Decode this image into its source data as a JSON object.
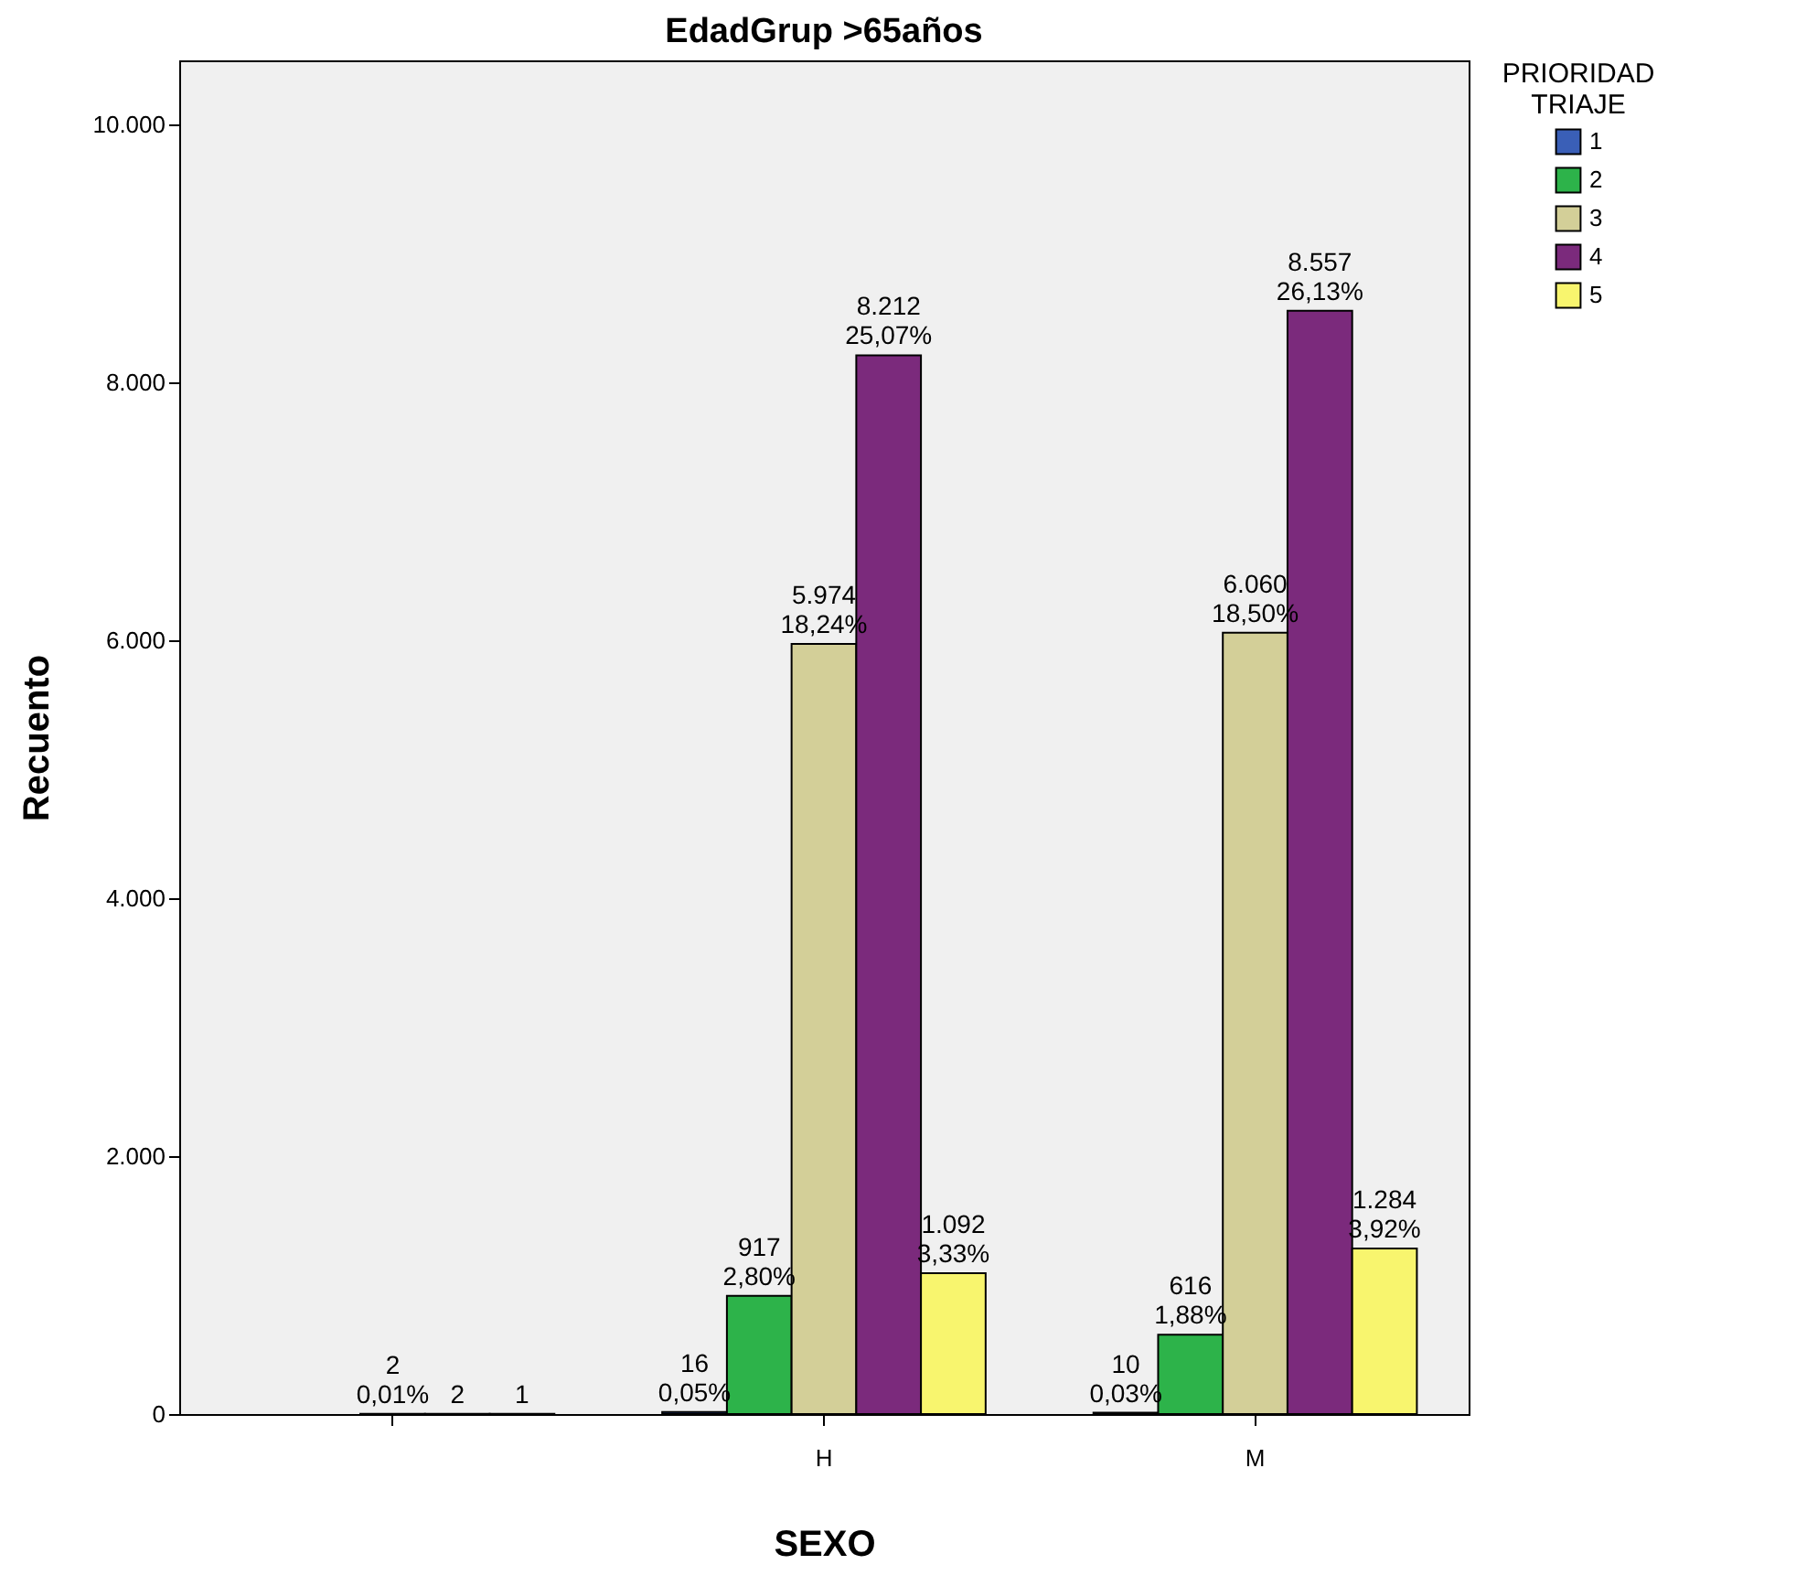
{
  "chart_data": {
    "type": "bar",
    "title": "EdadGrup >65años",
    "xlabel": "SEXO",
    "ylabel": "Recuento",
    "legend_title": "PRIORIDAD TRIAJE",
    "categories": [
      null,
      "H",
      "M"
    ],
    "series": [
      {
        "name": "1",
        "color": "#3a5fb7",
        "values": [
          null,
          16,
          10
        ],
        "value_labels": [
          null,
          "16\n0,05%",
          "10\n0,03%"
        ]
      },
      {
        "name": "2",
        "color": "#2db34a",
        "values": [
          null,
          917,
          616
        ],
        "value_labels": [
          null,
          "917\n2,80%",
          "616\n1,88%"
        ]
      },
      {
        "name": "3",
        "color": "#d3cf98",
        "values": [
          2,
          5974,
          6060
        ],
        "value_labels": [
          "2\n0,01%",
          "5.974\n18,24%",
          "6.060\n18,50%"
        ]
      },
      {
        "name": "4",
        "color": "#7b2a7c",
        "values": [
          2,
          8212,
          8557
        ],
        "value_labels": [
          "2",
          "8.212\n25,07%",
          "8.557\n26,13%"
        ]
      },
      {
        "name": "5",
        "color": "#f8f56e",
        "values": [
          1,
          1092,
          1284
        ],
        "value_labels": [
          "1",
          "1.092\n3,33%",
          "1.284\n3,92%"
        ]
      }
    ],
    "ylim": [
      0,
      10500
    ],
    "yticks": [
      {
        "value": 0,
        "label": "0"
      },
      {
        "value": 2000,
        "label": "2.000"
      },
      {
        "value": 4000,
        "label": "4.000"
      },
      {
        "value": 6000,
        "label": "6.000"
      },
      {
        "value": 8000,
        "label": "8.000"
      },
      {
        "value": 10000,
        "label": "10.000"
      }
    ],
    "grid": false,
    "legend": "top right"
  }
}
